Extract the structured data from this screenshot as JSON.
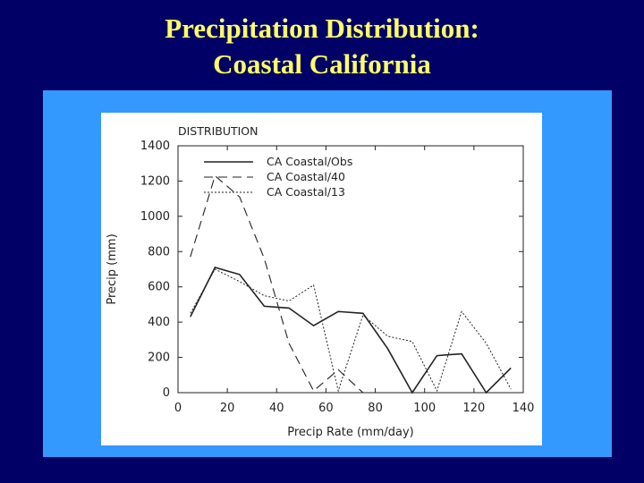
{
  "slide": {
    "title_line1": "Precipitation Distribution:",
    "title_line2": "Coastal California"
  },
  "colors": {
    "background": "#000066",
    "title": "#ffff66",
    "panel": "#3399ff",
    "plot_bg": "#ffffff",
    "ink": "#222222"
  },
  "chart_data": {
    "type": "line",
    "title": "DISTRIBUTION",
    "xlabel": "Precip Rate (mm/day)",
    "ylabel": "Precip (mm)",
    "xlim": [
      0,
      140
    ],
    "ylim": [
      0,
      1400
    ],
    "xticks": [
      0,
      20,
      40,
      60,
      80,
      100,
      120,
      140
    ],
    "yticks": [
      0,
      200,
      400,
      600,
      800,
      1000,
      1200,
      1400
    ],
    "grid": false,
    "legend_position": "top-left",
    "x": [
      5,
      15,
      25,
      35,
      45,
      55,
      65,
      75,
      85,
      95,
      105,
      115,
      125,
      135
    ],
    "series": [
      {
        "name": "CA Coastal/Obs",
        "style": "solid",
        "values": [
          430,
          710,
          670,
          490,
          480,
          380,
          460,
          450,
          250,
          0,
          210,
          220,
          0,
          140
        ]
      },
      {
        "name": "CA Coastal/40",
        "style": "dashed",
        "values": [
          770,
          1230,
          1110,
          760,
          280,
          10,
          130,
          0,
          null,
          null,
          null,
          null,
          null,
          null
        ]
      },
      {
        "name": "CA Coastal/13",
        "style": "dotted",
        "values": [
          450,
          700,
          630,
          550,
          520,
          610,
          10,
          440,
          320,
          290,
          10,
          460,
          280,
          20
        ]
      }
    ]
  }
}
